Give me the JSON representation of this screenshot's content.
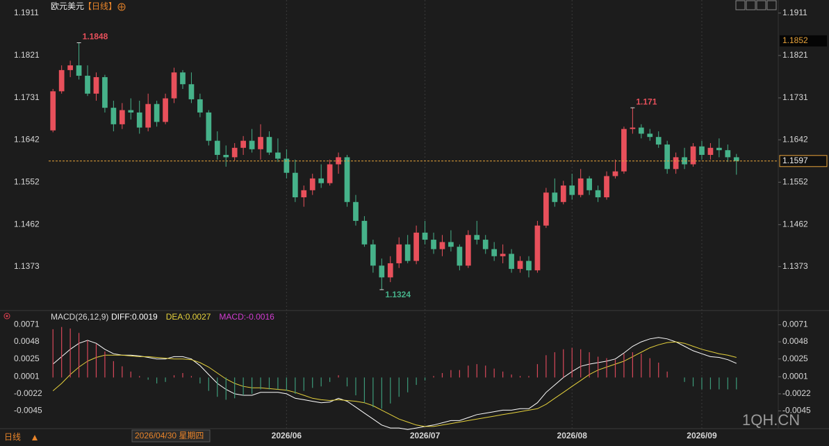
{
  "chart_data": [
    {
      "type": "candlestick",
      "title": "欧元美元",
      "period": "【日线】",
      "ylim": [
        1.129,
        1.1924
      ],
      "yticks": [
        1.1911,
        1.1821,
        1.1731,
        1.1642,
        1.1552,
        1.1462,
        1.1373
      ],
      "up_color": "#e8505b",
      "down_color": "#46b28a",
      "grid": true,
      "categories": [
        null,
        null,
        null,
        null,
        null,
        null,
        null,
        null,
        null,
        null,
        null,
        null,
        null,
        null,
        null,
        null,
        null,
        null,
        null,
        null,
        null,
        null,
        null,
        null,
        null,
        null,
        null,
        "2026/06",
        null,
        null,
        null,
        null,
        null,
        null,
        null,
        null,
        null,
        null,
        null,
        null,
        null,
        null,
        null,
        "2026/07",
        null,
        null,
        null,
        null,
        null,
        null,
        null,
        null,
        null,
        null,
        null,
        null,
        null,
        null,
        null,
        null,
        "2026/08",
        null,
        null,
        null,
        null,
        null,
        null,
        null,
        null,
        null,
        null,
        null,
        null,
        null,
        null,
        "2026/09",
        null,
        null,
        null,
        null
      ],
      "ohlc": [
        [
          1.1662,
          1.175,
          1.1658,
          1.1745
        ],
        [
          1.1745,
          1.18,
          1.174,
          1.179
        ],
        [
          1.179,
          1.181,
          1.1775,
          1.18
        ],
        [
          1.18,
          1.1848,
          1.177,
          1.1778
        ],
        [
          1.1778,
          1.18,
          1.1735,
          1.174
        ],
        [
          1.174,
          1.1785,
          1.1725,
          1.1775
        ],
        [
          1.1775,
          1.178,
          1.17,
          1.171
        ],
        [
          1.171,
          1.1725,
          1.166,
          1.1675
        ],
        [
          1.1675,
          1.172,
          1.1665,
          1.1705
        ],
        [
          1.1705,
          1.173,
          1.1685,
          1.17
        ],
        [
          1.17,
          1.1725,
          1.1655,
          1.1668
        ],
        [
          1.1668,
          1.174,
          1.166,
          1.1718
        ],
        [
          1.1718,
          1.1725,
          1.167,
          1.168
        ],
        [
          1.168,
          1.174,
          1.1675,
          1.173
        ],
        [
          1.173,
          1.1795,
          1.172,
          1.1785
        ],
        [
          1.1785,
          1.179,
          1.175,
          1.176
        ],
        [
          1.176,
          1.1785,
          1.172,
          1.1728
        ],
        [
          1.1728,
          1.174,
          1.169,
          1.17
        ],
        [
          1.17,
          1.1705,
          1.163,
          1.164
        ],
        [
          1.164,
          1.166,
          1.16,
          1.161
        ],
        [
          1.161,
          1.163,
          1.1585,
          1.1605
        ],
        [
          1.1605,
          1.1635,
          1.1598,
          1.1625
        ],
        [
          1.1625,
          1.165,
          1.161,
          1.164
        ],
        [
          1.164,
          1.1665,
          1.1615,
          1.1622
        ],
        [
          1.1622,
          1.1675,
          1.16,
          1.1648
        ],
        [
          1.1648,
          1.166,
          1.161,
          1.1615
        ],
        [
          1.1615,
          1.1645,
          1.1595,
          1.1602
        ],
        [
          1.1602,
          1.1622,
          1.156,
          1.1572
        ],
        [
          1.1572,
          1.16,
          1.151,
          1.152
        ],
        [
          1.152,
          1.1545,
          1.15,
          1.1535
        ],
        [
          1.1535,
          1.157,
          1.1525,
          1.156
        ],
        [
          1.156,
          1.159,
          1.154,
          1.155
        ],
        [
          1.155,
          1.16,
          1.1545,
          1.159
        ],
        [
          1.159,
          1.1615,
          1.157,
          1.1605
        ],
        [
          1.1605,
          1.161,
          1.15,
          1.151
        ],
        [
          1.151,
          1.1525,
          1.146,
          1.147
        ],
        [
          1.147,
          1.148,
          1.1415,
          1.142
        ],
        [
          1.142,
          1.143,
          1.136,
          1.1375
        ],
        [
          1.1375,
          1.139,
          1.1324,
          1.135
        ],
        [
          1.135,
          1.1395,
          1.134,
          1.138
        ],
        [
          1.138,
          1.1435,
          1.137,
          1.142
        ],
        [
          1.142,
          1.144,
          1.138,
          1.1385
        ],
        [
          1.1385,
          1.146,
          1.1378,
          1.1445
        ],
        [
          1.1445,
          1.147,
          1.142,
          1.143
        ],
        [
          1.143,
          1.1445,
          1.14,
          1.141
        ],
        [
          1.141,
          1.144,
          1.1395,
          1.1425
        ],
        [
          1.1425,
          1.145,
          1.1405,
          1.1415
        ],
        [
          1.1415,
          1.142,
          1.1365,
          1.1375
        ],
        [
          1.1375,
          1.145,
          1.137,
          1.144
        ],
        [
          1.144,
          1.147,
          1.142,
          1.143
        ],
        [
          1.143,
          1.144,
          1.14,
          1.141
        ],
        [
          1.141,
          1.1425,
          1.1385,
          1.1395
        ],
        [
          1.1395,
          1.142,
          1.138,
          1.14
        ],
        [
          1.14,
          1.141,
          1.136,
          1.1368
        ],
        [
          1.1368,
          1.1395,
          1.136,
          1.1385
        ],
        [
          1.1385,
          1.1395,
          1.135,
          1.1365
        ],
        [
          1.1365,
          1.147,
          1.136,
          1.146
        ],
        [
          1.146,
          1.154,
          1.1455,
          1.153
        ],
        [
          1.153,
          1.156,
          1.15,
          1.151
        ],
        [
          1.151,
          1.1555,
          1.1505,
          1.1545
        ],
        [
          1.1545,
          1.157,
          1.1515,
          1.1525
        ],
        [
          1.1525,
          1.158,
          1.152,
          1.156
        ],
        [
          1.156,
          1.1565,
          1.1525,
          1.1535
        ],
        [
          1.1535,
          1.1545,
          1.151,
          1.152
        ],
        [
          1.152,
          1.1575,
          1.1515,
          1.1565
        ],
        [
          1.1565,
          1.16,
          1.156,
          1.1575
        ],
        [
          1.1575,
          1.167,
          1.157,
          1.1665
        ],
        [
          1.1665,
          1.171,
          1.1655,
          1.1668
        ],
        [
          1.1668,
          1.1675,
          1.1645,
          1.1655
        ],
        [
          1.1655,
          1.1665,
          1.164,
          1.1648
        ],
        [
          1.1648,
          1.166,
          1.1625,
          1.1632
        ],
        [
          1.1632,
          1.164,
          1.157,
          1.158
        ],
        [
          1.158,
          1.1615,
          1.157,
          1.1605
        ],
        [
          1.1605,
          1.1625,
          1.158,
          1.159
        ],
        [
          1.159,
          1.1635,
          1.1585,
          1.1628
        ],
        [
          1.1628,
          1.164,
          1.16,
          1.161
        ],
        [
          1.161,
          1.1635,
          1.16,
          1.1625
        ],
        [
          1.1625,
          1.1645,
          1.1605,
          1.162
        ],
        [
          1.162,
          1.1632,
          1.1595,
          1.1605
        ],
        [
          1.1605,
          1.1612,
          1.1568,
          1.1597
        ]
      ],
      "annotations": [
        1.1848,
        1.171,
        1.1324
      ],
      "last_price": 1.1597,
      "last_price_color": "#e8a33a",
      "marker_price": 1.1852,
      "crosshair_date": "2026/04/30 星期四"
    },
    {
      "type": "macd",
      "title": "MACD(26,12,9)",
      "ylim": [
        -0.0067,
        0.0078
      ],
      "yticks": [
        0.0071,
        0.0048,
        0.0025,
        0.0001,
        -0.0022,
        -0.0045
      ],
      "up_color": "#d9485a",
      "down_color": "#3d9b7a",
      "series": [
        {
          "label": "DIFF:0.0019",
          "color": "#ffffff",
          "kind": "line",
          "values": [
            0.0018,
            0.0028,
            0.0038,
            0.0046,
            0.005,
            0.0046,
            0.0038,
            0.0032,
            0.003,
            0.003,
            0.0029,
            0.0027,
            0.0025,
            0.0025,
            0.0028,
            0.0028,
            0.0025,
            0.0016,
            0.0004,
            -0.0008,
            -0.0016,
            -0.0022,
            -0.0024,
            -0.0024,
            -0.002,
            -0.002,
            -0.002,
            -0.0022,
            -0.0028,
            -0.003,
            -0.0032,
            -0.0034,
            -0.0033,
            -0.0028,
            -0.0032,
            -0.004,
            -0.0048,
            -0.0056,
            -0.0064,
            -0.0068,
            -0.0068,
            -0.007,
            -0.0068,
            -0.0066,
            -0.0064,
            -0.0061,
            -0.0058,
            -0.0058,
            -0.0054,
            -0.005,
            -0.0048,
            -0.0046,
            -0.0044,
            -0.0044,
            -0.0042,
            -0.0042,
            -0.0034,
            -0.002,
            -0.001,
            0.0,
            0.0008,
            0.0015,
            0.0018,
            0.002,
            0.0022,
            0.0025,
            0.0033,
            0.0042,
            0.0048,
            0.0052,
            0.0054,
            0.0052,
            0.0048,
            0.0042,
            0.0036,
            0.0032,
            0.0028,
            0.0027,
            0.0024,
            0.0019
          ]
        },
        {
          "label": "DEA:0.0027",
          "color": "#e6d23c",
          "kind": "line",
          "values": [
            -0.0018,
            -0.0008,
            0.0004,
            0.0014,
            0.0022,
            0.0027,
            0.003,
            0.003,
            0.003,
            0.0029,
            0.0028,
            0.0028,
            0.0027,
            0.0026,
            0.0025,
            0.0025,
            0.0024,
            0.002,
            0.0014,
            0.0006,
            -0.0002,
            -0.0008,
            -0.0012,
            -0.0014,
            -0.0014,
            -0.0015,
            -0.0016,
            -0.0017,
            -0.002,
            -0.0024,
            -0.0028,
            -0.003,
            -0.0031,
            -0.003,
            -0.0031,
            -0.0032,
            -0.0034,
            -0.0038,
            -0.0044,
            -0.005,
            -0.0056,
            -0.006,
            -0.0064,
            -0.0066,
            -0.0066,
            -0.0064,
            -0.0062,
            -0.006,
            -0.0058,
            -0.0056,
            -0.0054,
            -0.0052,
            -0.005,
            -0.0048,
            -0.0046,
            -0.0044,
            -0.0042,
            -0.0036,
            -0.0028,
            -0.002,
            -0.0012,
            -0.0004,
            0.0004,
            0.001,
            0.0014,
            0.0018,
            0.0022,
            0.0028,
            0.0034,
            0.004,
            0.0044,
            0.0047,
            0.0048,
            0.0046,
            0.0042,
            0.0038,
            0.0035,
            0.0032,
            0.003,
            0.0027
          ]
        },
        {
          "label": "MACD:-0.0016",
          "color": "#d23cd2",
          "kind": "histogram",
          "values": [
            0.0065,
            0.0068,
            0.0066,
            0.006,
            0.005,
            0.0045,
            0.0035,
            0.0022,
            0.0015,
            0.0008,
            0.0002,
            -0.0003,
            -0.0008,
            -0.0006,
            0.0003,
            0.0006,
            0.0002,
            -0.0008,
            -0.0018,
            -0.0026,
            -0.003,
            -0.0028,
            -0.0024,
            -0.0022,
            -0.0016,
            -0.0016,
            -0.0016,
            -0.0018,
            -0.0022,
            -0.0018,
            -0.0014,
            -0.0012,
            -0.0006,
            0.0003,
            -0.0012,
            -0.0024,
            -0.0034,
            -0.004,
            -0.0042,
            -0.0035,
            -0.0026,
            -0.002,
            -0.001,
            -0.0004,
            0.0002,
            0.0006,
            0.001,
            0.001,
            0.0016,
            0.0018,
            0.0016,
            0.0012,
            0.0008,
            0.0004,
            0.0002,
            0.0002,
            0.0018,
            0.003,
            0.0034,
            0.0038,
            0.004,
            0.0038,
            0.0034,
            0.0028,
            0.0026,
            0.0024,
            0.0032,
            0.0034,
            0.0032,
            0.0026,
            0.002,
            0.0008,
            0.0,
            -0.0006,
            -0.0012,
            -0.0016,
            -0.0016,
            -0.0016,
            -0.0016,
            -0.0016
          ]
        }
      ]
    }
  ],
  "footer": {
    "period": "日线",
    "watermark": "1QH.CN"
  }
}
